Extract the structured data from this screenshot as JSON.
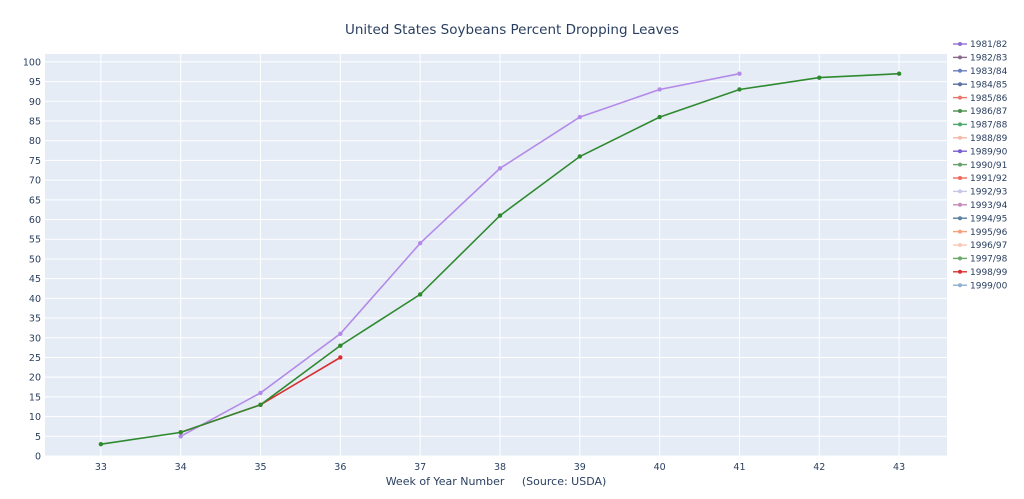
{
  "chart_data": {
    "type": "line",
    "title": "United States Soybeans Percent Dropping Leaves",
    "xlabel": "Week of Year Number     (Source: USDA)",
    "ylabel": "",
    "xlim": [
      32.3,
      43.6
    ],
    "ylim": [
      0,
      102
    ],
    "x_ticks": [
      33,
      34,
      35,
      36,
      37,
      38,
      39,
      40,
      41,
      42,
      43
    ],
    "y_ticks": [
      0,
      5,
      10,
      15,
      20,
      25,
      30,
      35,
      40,
      45,
      50,
      55,
      60,
      65,
      70,
      75,
      80,
      85,
      90,
      95,
      100
    ],
    "grid": true,
    "legend_position": "right",
    "series": [
      {
        "name": "1981/82",
        "color": "#8d6fd1",
        "x": [],
        "y": []
      },
      {
        "name": "1982/83",
        "color": "#8a6a8a",
        "x": [],
        "y": []
      },
      {
        "name": "1983/84",
        "color": "#6a7fc0",
        "x": [],
        "y": []
      },
      {
        "name": "1984/85",
        "color": "#5a6f9f",
        "x": [],
        "y": []
      },
      {
        "name": "1985/86",
        "color": "#e8746a",
        "x": [],
        "y": []
      },
      {
        "name": "1986/87",
        "color": "#4a8f4a",
        "x": [],
        "y": []
      },
      {
        "name": "1987/88",
        "color": "#4fa86f",
        "x": [],
        "y": []
      },
      {
        "name": "1988/89",
        "color": "#f3b8a8",
        "x": [],
        "y": []
      },
      {
        "name": "1989/90",
        "color": "#7a5fd1",
        "x": [],
        "y": []
      },
      {
        "name": "1990/91",
        "color": "#6a9f6a",
        "x": [],
        "y": []
      },
      {
        "name": "1991/92",
        "color": "#f06a5a",
        "x": [],
        "y": []
      },
      {
        "name": "1992/93",
        "color": "#c8c8e8",
        "x": [],
        "y": []
      },
      {
        "name": "1993/94",
        "color": "#c88ab8",
        "x": [],
        "y": []
      },
      {
        "name": "1994/95",
        "color": "#5a7fa0",
        "x": [],
        "y": []
      },
      {
        "name": "1995/96",
        "color": "#f5a07a",
        "x": [],
        "y": []
      },
      {
        "name": "1996/97",
        "color": "#f8c8b8",
        "x": [],
        "y": []
      },
      {
        "name": "1997/98",
        "color": "#6aa86a",
        "x": [],
        "y": []
      },
      {
        "name": "1998/99",
        "color": "#d83030",
        "x": [
          34,
          35,
          36
        ],
        "y": [
          6,
          13,
          25
        ]
      },
      {
        "name": "1999/00",
        "color": "#8fb0d0",
        "x": [],
        "y": []
      },
      {
        "name": "",
        "color": "#b48ae8",
        "x": [
          34,
          35,
          36,
          37,
          38,
          39,
          40,
          41
        ],
        "y": [
          5,
          16,
          31,
          54,
          73,
          86,
          93,
          97
        ]
      },
      {
        "name": "",
        "color": "#2f8a2f",
        "x": [
          33,
          34,
          35,
          36,
          37,
          38,
          39,
          40,
          41,
          42,
          43
        ],
        "y": [
          3,
          6,
          13,
          28,
          41,
          61,
          76,
          86,
          93,
          96,
          97
        ]
      }
    ]
  }
}
